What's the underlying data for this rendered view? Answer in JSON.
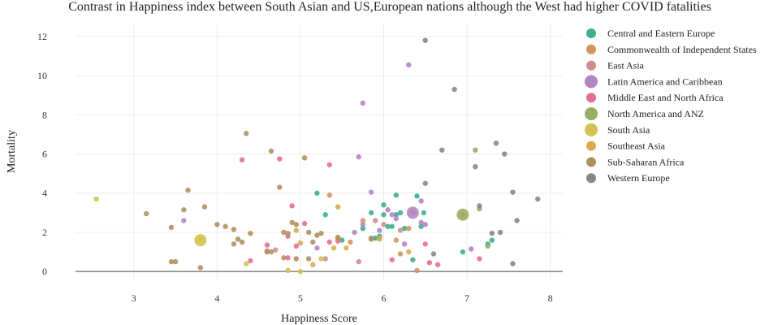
{
  "chart_data": {
    "type": "scatter",
    "title": "Contrast in Happiness index between South Asian and US,European nations although the West had higher COVID fatalities",
    "xlabel": "Happiness Score",
    "ylabel": "Mortality",
    "xlim": [
      2.3,
      8.15
    ],
    "ylim": [
      -0.45,
      12.7
    ],
    "xticks": [
      3,
      4,
      5,
      6,
      7,
      8
    ],
    "yticks": [
      0,
      2,
      4,
      6,
      8,
      10,
      12
    ],
    "grid": true,
    "legend_position": "right",
    "series": [
      {
        "name": "Central and Eastern Europe",
        "color": "#3bb08f",
        "points": [
          [
            5.5,
            1.6
          ],
          [
            5.85,
            1.7
          ],
          [
            5.9,
            1.7
          ],
          [
            6.0,
            3.4
          ],
          [
            6.05,
            2.3
          ],
          [
            6.1,
            2.3
          ],
          [
            6.15,
            2.9
          ],
          [
            6.2,
            3.0
          ],
          [
            6.25,
            2.2
          ],
          [
            6.35,
            0.6
          ],
          [
            6.4,
            3.85
          ],
          [
            6.45,
            2.3
          ],
          [
            6.48,
            3.0
          ],
          [
            6.95,
            1.0
          ],
          [
            7.25,
            1.4
          ],
          [
            5.75,
            2.2
          ],
          [
            5.85,
            3.0
          ],
          [
            6.15,
            3.9
          ],
          [
            5.2,
            4.0
          ],
          [
            5.3,
            2.9
          ],
          [
            6.0,
            2.9
          ],
          [
            5.95,
            1.8
          ],
          [
            7.3,
            1.6
          ]
        ]
      },
      {
        "name": "Commonwealth of Independent States",
        "color": "#d4945c",
        "points": [
          [
            5.45,
            1.75
          ],
          [
            5.75,
            2.6
          ],
          [
            5.95,
            1.7
          ],
          [
            6.15,
            1.6
          ],
          [
            5.6,
            1.5
          ],
          [
            6.3,
            2.2
          ],
          [
            6.4,
            0.05
          ],
          [
            6.2,
            0.9
          ],
          [
            5.35,
            3.9
          ]
        ]
      },
      {
        "name": "East Asia",
        "color": "#cf8f8e",
        "points": [
          [
            5.7,
            0.5
          ],
          [
            5.85,
            1.7
          ],
          [
            6.0,
            2.4
          ],
          [
            6.2,
            2.1
          ],
          [
            5.3,
            0.65
          ],
          [
            5.9,
            2.6
          ],
          [
            4.7,
            1.1
          ]
        ]
      },
      {
        "name": "Latin America and Caribbean",
        "color": "#b585c2",
        "points": [
          [
            5.75,
            8.6
          ],
          [
            6.3,
            10.55
          ],
          [
            5.85,
            4.05
          ],
          [
            5.7,
            5.85
          ],
          [
            6.05,
            3.15
          ],
          [
            6.35,
            3.0
          ],
          [
            6.45,
            3.6
          ],
          [
            6.15,
            2.7
          ],
          [
            6.5,
            2.4
          ],
          [
            5.95,
            2.1
          ],
          [
            5.75,
            2.4
          ],
          [
            6.1,
            2.9
          ],
          [
            6.45,
            2.5
          ],
          [
            7.05,
            1.15
          ],
          [
            6.25,
            1.4
          ],
          [
            3.6,
            2.6
          ],
          [
            5.2,
            1.2
          ],
          [
            5.65,
            2.0
          ]
        ]
      },
      {
        "name": "Middle East and North Africa",
        "color": "#e46f93",
        "points": [
          [
            4.3,
            5.7
          ],
          [
            4.75,
            5.75
          ],
          [
            5.35,
            5.45
          ],
          [
            4.9,
            3.35
          ],
          [
            5.05,
            2.45
          ],
          [
            4.85,
            1.8
          ],
          [
            4.95,
            1.3
          ],
          [
            4.6,
            1.0
          ],
          [
            4.4,
            0.55
          ],
          [
            5.45,
            1.55
          ],
          [
            6.1,
            0.6
          ],
          [
            6.5,
            1.4
          ],
          [
            6.55,
            0.45
          ],
          [
            6.65,
            0.35
          ],
          [
            7.15,
            0.65
          ],
          [
            4.85,
            0.7
          ],
          [
            4.6,
            1.35
          ],
          [
            5.35,
            1.5
          ]
        ]
      },
      {
        "name": "North America and ANZ",
        "color": "#99ad63",
        "points": [
          [
            6.95,
            2.9
          ],
          [
            7.1,
            6.2
          ],
          [
            7.15,
            3.2
          ],
          [
            7.25,
            1.3
          ]
        ]
      },
      {
        "name": "South Asia",
        "color": "#d2c251",
        "points": [
          [
            2.55,
            3.7
          ],
          [
            3.8,
            1.6
          ],
          [
            4.35,
            0.4
          ],
          [
            4.85,
            0.05
          ],
          [
            5.0,
            0.0
          ],
          [
            5.25,
            0.65
          ]
        ]
      },
      {
        "name": "Southeast Asia",
        "color": "#d9ad4e",
        "points": [
          [
            4.95,
            2.1
          ],
          [
            5.0,
            1.45
          ],
          [
            5.15,
            0.35
          ],
          [
            5.4,
            1.2
          ],
          [
            5.55,
            1.2
          ],
          [
            5.95,
            1.65
          ],
          [
            6.3,
            1.0
          ],
          [
            5.45,
            3.3
          ]
        ]
      },
      {
        "name": "Sub-Saharan Africa",
        "color": "#b0905f",
        "points": [
          [
            3.15,
            2.95
          ],
          [
            3.45,
            2.25
          ],
          [
            3.6,
            3.15
          ],
          [
            3.65,
            4.15
          ],
          [
            3.85,
            3.3
          ],
          [
            4.1,
            2.3
          ],
          [
            4.2,
            2.15
          ],
          [
            4.25,
            1.65
          ],
          [
            4.3,
            1.5
          ],
          [
            4.35,
            7.05
          ],
          [
            4.4,
            1.95
          ],
          [
            4.6,
            1.05
          ],
          [
            4.65,
            6.15
          ],
          [
            4.75,
            4.3
          ],
          [
            4.8,
            2.0
          ],
          [
            4.85,
            1.95
          ],
          [
            4.9,
            2.5
          ],
          [
            4.95,
            2.4
          ],
          [
            5.05,
            5.8
          ],
          [
            5.1,
            2.0
          ],
          [
            5.15,
            1.5
          ],
          [
            5.2,
            1.85
          ],
          [
            5.25,
            1.95
          ],
          [
            5.45,
            1.7
          ],
          [
            5.1,
            0.65
          ],
          [
            4.95,
            0.65
          ],
          [
            4.8,
            0.7
          ],
          [
            3.45,
            0.5
          ],
          [
            3.5,
            0.5
          ],
          [
            3.8,
            0.2
          ],
          [
            5.85,
            1.65
          ],
          [
            4.65,
            1.0
          ],
          [
            4.2,
            1.4
          ],
          [
            4.0,
            2.4
          ]
        ]
      },
      {
        "name": "Western Europe",
        "color": "#878787",
        "points": [
          [
            6.5,
            11.8
          ],
          [
            6.85,
            9.3
          ],
          [
            6.7,
            6.2
          ],
          [
            7.35,
            6.55
          ],
          [
            7.45,
            6.0
          ],
          [
            7.1,
            5.35
          ],
          [
            6.5,
            4.5
          ],
          [
            7.55,
            4.05
          ],
          [
            7.85,
            3.7
          ],
          [
            7.15,
            3.35
          ],
          [
            7.6,
            2.6
          ],
          [
            7.4,
            2.0
          ],
          [
            7.3,
            1.95
          ],
          [
            6.6,
            0.9
          ],
          [
            7.55,
            0.4
          ]
        ]
      }
    ],
    "large_markers": [
      {
        "series": "Latin America and Caribbean",
        "x": 6.35,
        "y": 3.0
      },
      {
        "series": "North America and ANZ",
        "x": 6.95,
        "y": 2.9
      },
      {
        "series": "South Asia",
        "x": 3.8,
        "y": 1.6
      }
    ]
  }
}
